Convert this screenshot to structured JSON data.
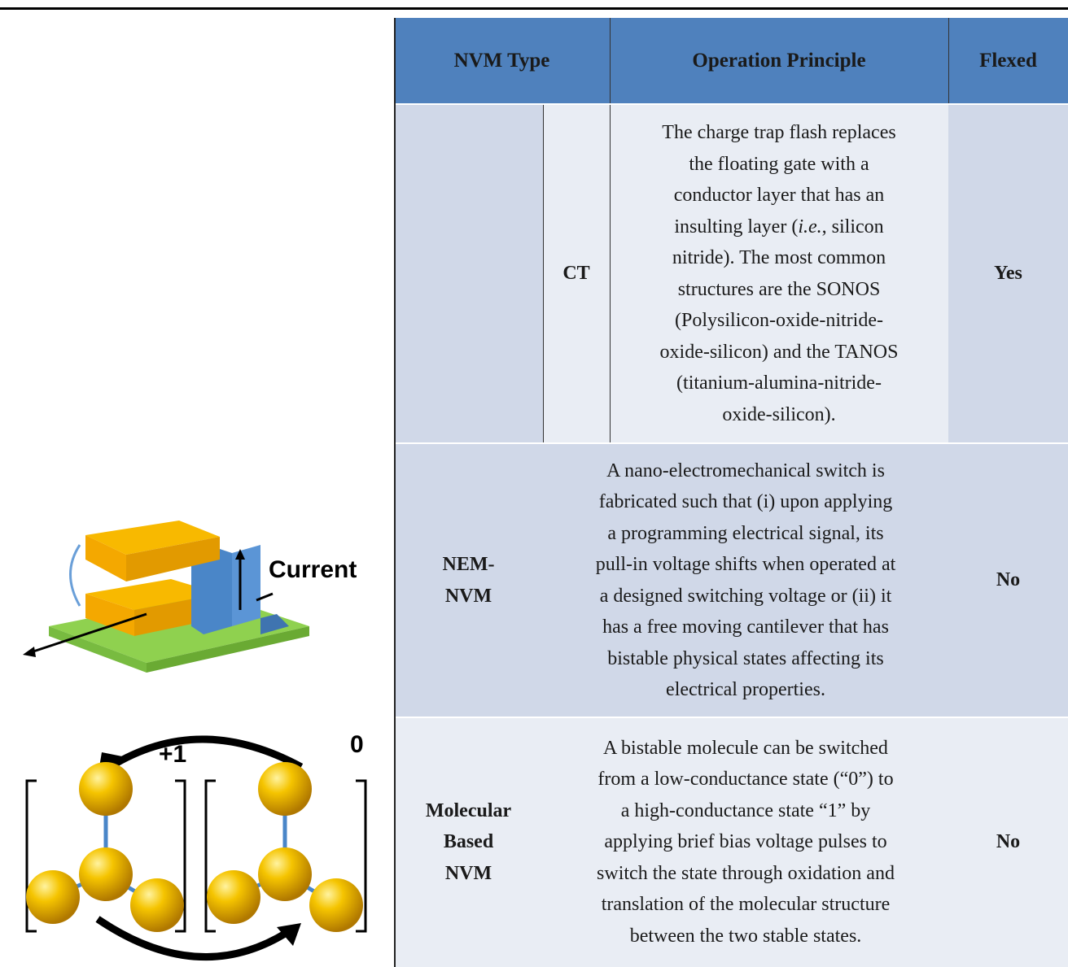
{
  "table": {
    "header": [
      "NVM Type",
      "Operation Principle",
      "Flexed"
    ],
    "rows": [
      {
        "type": "CT",
        "principle": [
          "The charge trap flash replaces",
          "the floating gate with a",
          "conductor layer that has an",
          [
            "insulting layer (",
            "i.e.",
            ", silicon"
          ],
          "nitride). The most common",
          "structures are the SONOS",
          "(Polysilicon-oxide-nitride-",
          "oxide-silicon) and the TANOS",
          "(titanium-alumina-nitride-",
          "oxide-silicon)."
        ],
        "flexed": "Yes"
      },
      {
        "type": [
          "NEM-",
          "NVM"
        ],
        "principle": [
          "A nano-electromechanical switch is",
          "fabricated such that (i) upon applying",
          "a programming electrical signal, its",
          "pull-in voltage shifts when operated at",
          "a designed switching voltage or (ii) it",
          "has a free moving cantilever that has",
          "bistable physical states affecting its",
          "electrical properties."
        ],
        "flexed": "No"
      },
      {
        "type": [
          "Molecular",
          "Based",
          "NVM"
        ],
        "principle": [
          "A bistable molecule can be switched",
          "from a low-conductance state (“0”) to",
          "a high-conductance state “1” by",
          "applying brief bias voltage pulses to",
          "switch the state through oxidation and",
          "translation of the molecular structure",
          "between the two stable states."
        ],
        "flexed": "No"
      }
    ]
  },
  "figures": {
    "nem_label": "Current",
    "molecule_labels": [
      "+1",
      "0"
    ]
  }
}
